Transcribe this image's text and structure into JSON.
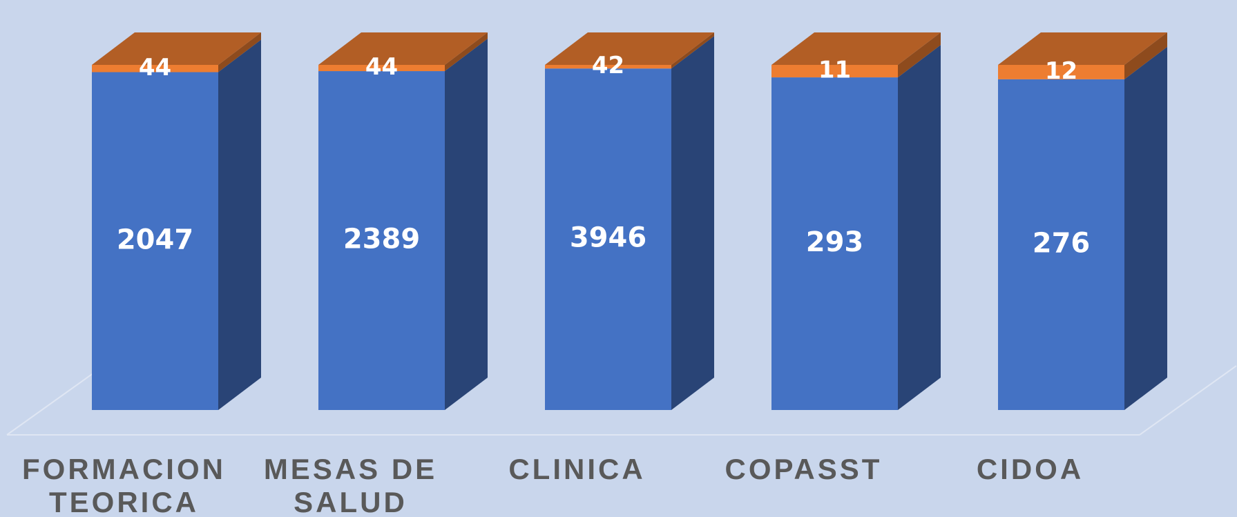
{
  "chart_data": {
    "type": "bar",
    "stacked": "percent",
    "categories": [
      "FORMACION TEORICA",
      "MESAS DE SALUD",
      "CLINICA",
      "COPASST",
      "CIDOA"
    ],
    "series": [
      {
        "color": "#4472c4",
        "values": [
          2047,
          2389,
          3946,
          293,
          276
        ]
      },
      {
        "color": "#ed7d31",
        "values": [
          44,
          44,
          42,
          11,
          12
        ]
      }
    ]
  }
}
